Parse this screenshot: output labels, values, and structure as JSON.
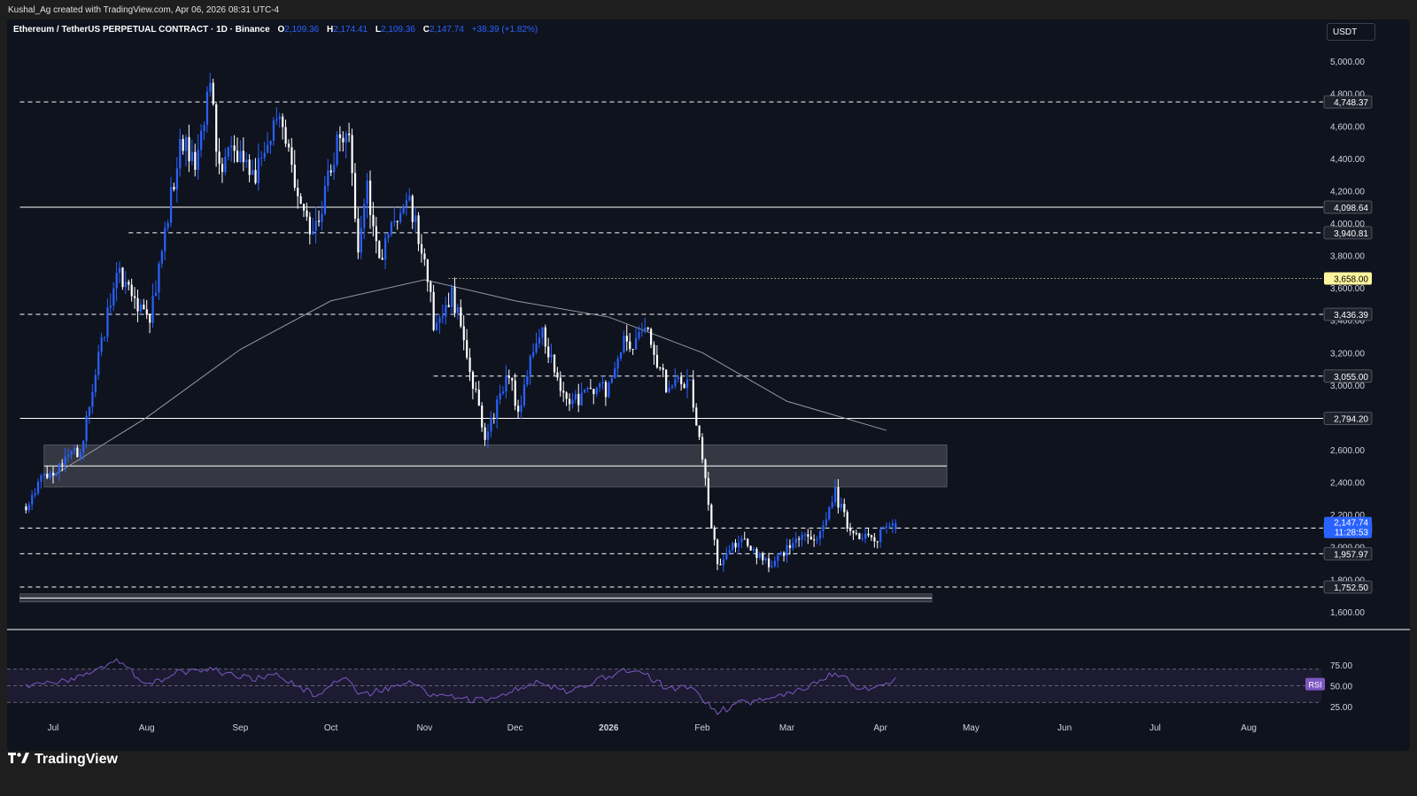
{
  "header": {
    "attribution": "Kushal_Ag created with TradingView.com, Apr 06, 2026 08:31 UTC-4",
    "symbol": "Ethereum / TetherUS PERPETUAL CONTRACT · 1D · Binance",
    "open_label": "O",
    "open": "2,109.36",
    "high_label": "H",
    "high": "2,174.41",
    "low_label": "L",
    "low": "2,109.36",
    "close_label": "C",
    "close": "2,147.74",
    "change": "+38.39 (+1.82%)",
    "currency_button": "USDT"
  },
  "footer": {
    "brand": "TradingView"
  },
  "colors": {
    "background": "#0f131e",
    "up_candle": "#2962ff",
    "down_candle": "#ffffff",
    "rsi_line": "#7e57c2",
    "current_price": "#2962ff",
    "highlight_level": "#fff59d"
  },
  "chart_data": {
    "type": "candlestick",
    "title": "Ethereum / TetherUS PERPETUAL CONTRACT · 1D · Binance",
    "timeframe": "1D",
    "y_axis": {
      "ticks": [
        "5,000.00",
        "4,800.00",
        "4,600.00",
        "4,400.00",
        "4,200.00",
        "4,000.00",
        "3,800.00",
        "3,600.00",
        "3,400.00",
        "3,200.00",
        "3,000.00",
        "2,800.00",
        "2,600.00",
        "2,400.00",
        "2,200.00",
        "2,000.00",
        "1,800.00",
        "1,600.00"
      ],
      "ylim": [
        1550,
        5050
      ]
    },
    "x_axis": {
      "labels": [
        "Jul",
        "Aug",
        "Sep",
        "Oct",
        "Nov",
        "Dec",
        "2026",
        "Feb",
        "Mar",
        "Apr",
        "May",
        "Jun",
        "Jul",
        "Aug"
      ],
      "dates": [
        "2025-07-01",
        "2025-08-01",
        "2025-09-01",
        "2025-10-01",
        "2025-11-01",
        "2025-12-01",
        "2026-01-01",
        "2026-02-01",
        "2026-03-01",
        "2026-04-01",
        "2026-05-01",
        "2026-06-01",
        "2026-07-01",
        "2026-08-01"
      ]
    },
    "anchor_points": [
      {
        "date": "2025-06-22",
        "price": 2250
      },
      {
        "date": "2025-06-28",
        "price": 2430
      },
      {
        "date": "2025-07-10",
        "price": 2600
      },
      {
        "date": "2025-07-22",
        "price": 3700
      },
      {
        "date": "2025-08-02",
        "price": 3400
      },
      {
        "date": "2025-08-12",
        "price": 4500
      },
      {
        "date": "2025-08-17",
        "price": 4400
      },
      {
        "date": "2025-08-22",
        "price": 4820
      },
      {
        "date": "2025-08-25",
        "price": 4350
      },
      {
        "date": "2025-09-01",
        "price": 4450
      },
      {
        "date": "2025-09-06",
        "price": 4300
      },
      {
        "date": "2025-09-13",
        "price": 4680
      },
      {
        "date": "2025-09-25",
        "price": 3900
      },
      {
        "date": "2025-10-03",
        "price": 4480
      },
      {
        "date": "2025-10-07",
        "price": 4500
      },
      {
        "date": "2025-10-10",
        "price": 3850
      },
      {
        "date": "2025-10-13",
        "price": 4200
      },
      {
        "date": "2025-10-17",
        "price": 3800
      },
      {
        "date": "2025-10-27",
        "price": 4150
      },
      {
        "date": "2025-11-03",
        "price": 3600
      },
      {
        "date": "2025-11-04",
        "price": 3300
      },
      {
        "date": "2025-11-10",
        "price": 3580
      },
      {
        "date": "2025-11-21",
        "price": 2700
      },
      {
        "date": "2025-11-29",
        "price": 3050
      },
      {
        "date": "2025-12-02",
        "price": 2850
      },
      {
        "date": "2025-12-09",
        "price": 3350
      },
      {
        "date": "2025-12-18",
        "price": 2900
      },
      {
        "date": "2026-01-01",
        "price": 2980
      },
      {
        "date": "2026-01-06",
        "price": 3250
      },
      {
        "date": "2026-01-14",
        "price": 3320
      },
      {
        "date": "2026-01-20",
        "price": 3000
      },
      {
        "date": "2026-01-28",
        "price": 3000
      },
      {
        "date": "2026-02-02",
        "price": 2400
      },
      {
        "date": "2026-02-06",
        "price": 1900
      },
      {
        "date": "2026-02-14",
        "price": 2050
      },
      {
        "date": "2026-02-24",
        "price": 1880
      },
      {
        "date": "2026-03-03",
        "price": 2050
      },
      {
        "date": "2026-03-11",
        "price": 2080
      },
      {
        "date": "2026-03-17",
        "price": 2330
      },
      {
        "date": "2026-03-22",
        "price": 2080
      },
      {
        "date": "2026-03-30",
        "price": 2030
      },
      {
        "date": "2026-04-02",
        "price": 2110
      },
      {
        "date": "2026-04-06",
        "price": 2147.74
      }
    ],
    "moving_average": [
      {
        "date": "2025-07-01",
        "price": 2440
      },
      {
        "date": "2025-08-01",
        "price": 2800
      },
      {
        "date": "2025-09-01",
        "price": 3220
      },
      {
        "date": "2025-10-01",
        "price": 3520
      },
      {
        "date": "2025-11-01",
        "price": 3650
      },
      {
        "date": "2025-12-01",
        "price": 3520
      },
      {
        "date": "2026-01-01",
        "price": 3420
      },
      {
        "date": "2026-02-01",
        "price": 3200
      },
      {
        "date": "2026-03-01",
        "price": 2900
      },
      {
        "date": "2026-04-03",
        "price": 2720
      }
    ],
    "price_levels": [
      {
        "value": 4748.37,
        "label": "4,748.37",
        "style": "dashed",
        "from": "2025-06-20"
      },
      {
        "value": 4098.64,
        "label": "4,098.64",
        "style": "solid",
        "from": "2025-06-20"
      },
      {
        "value": 3940.81,
        "label": "3,940.81",
        "style": "dashed",
        "from": "2025-07-26"
      },
      {
        "value": 3658.0,
        "label": "3,658.00",
        "style": "dotted",
        "from": "2025-11-09",
        "highlight": true
      },
      {
        "value": 3436.39,
        "label": "3,436.39",
        "style": "dashed",
        "from": "2025-06-20"
      },
      {
        "value": 3055.0,
        "label": "3,055.00",
        "style": "dashed",
        "from": "2025-11-04"
      },
      {
        "value": 2794.2,
        "label": "2,794.20",
        "style": "solid",
        "from": "2025-06-20"
      },
      {
        "value": 2116.36,
        "label": "2,116.36",
        "style": "dashed",
        "from": "2025-06-20"
      },
      {
        "value": 1957.97,
        "label": "1,957.97",
        "style": "dashed",
        "from": "2025-06-20"
      },
      {
        "value": 1752.5,
        "label": "1,752.50",
        "style": "dashed",
        "from": "2025-06-20"
      }
    ],
    "zones": [
      {
        "from_price": 2370,
        "to_price": 2630,
        "from_date": "2025-06-28",
        "to_date": "2026-04-23"
      },
      {
        "from_price": 1660,
        "to_price": 1710,
        "from_date": "2025-06-20",
        "to_date": "2026-04-18"
      }
    ],
    "current_price": {
      "value": 2147.74,
      "label": "2,147.74",
      "countdown": "11:28:53"
    },
    "rsi": {
      "label": "RSI",
      "ticks": [
        "75.00",
        "50.00",
        "25.00"
      ],
      "ylim": [
        10,
        90
      ],
      "upper": 70,
      "lower": 30,
      "points": [
        {
          "date": "2025-06-22",
          "value": 50
        },
        {
          "date": "2025-07-05",
          "value": 55
        },
        {
          "date": "2025-07-22",
          "value": 80
        },
        {
          "date": "2025-08-02",
          "value": 50
        },
        {
          "date": "2025-08-10",
          "value": 65
        },
        {
          "date": "2025-08-22",
          "value": 70
        },
        {
          "date": "2025-09-05",
          "value": 58
        },
        {
          "date": "2025-09-13",
          "value": 62
        },
        {
          "date": "2025-09-26",
          "value": 38
        },
        {
          "date": "2025-10-06",
          "value": 62
        },
        {
          "date": "2025-10-11",
          "value": 38
        },
        {
          "date": "2025-10-27",
          "value": 55
        },
        {
          "date": "2025-11-04",
          "value": 38
        },
        {
          "date": "2025-11-21",
          "value": 32
        },
        {
          "date": "2025-12-09",
          "value": 55
        },
        {
          "date": "2025-12-18",
          "value": 42
        },
        {
          "date": "2026-01-06",
          "value": 68
        },
        {
          "date": "2026-01-14",
          "value": 62
        },
        {
          "date": "2026-01-21",
          "value": 45
        },
        {
          "date": "2026-01-28",
          "value": 50
        },
        {
          "date": "2026-02-06",
          "value": 18
        },
        {
          "date": "2026-02-14",
          "value": 30
        },
        {
          "date": "2026-02-24",
          "value": 32
        },
        {
          "date": "2026-03-08",
          "value": 50
        },
        {
          "date": "2026-03-17",
          "value": 66
        },
        {
          "date": "2026-03-26",
          "value": 45
        },
        {
          "date": "2026-03-31",
          "value": 52
        },
        {
          "date": "2026-04-06",
          "value": 57
        }
      ]
    }
  }
}
